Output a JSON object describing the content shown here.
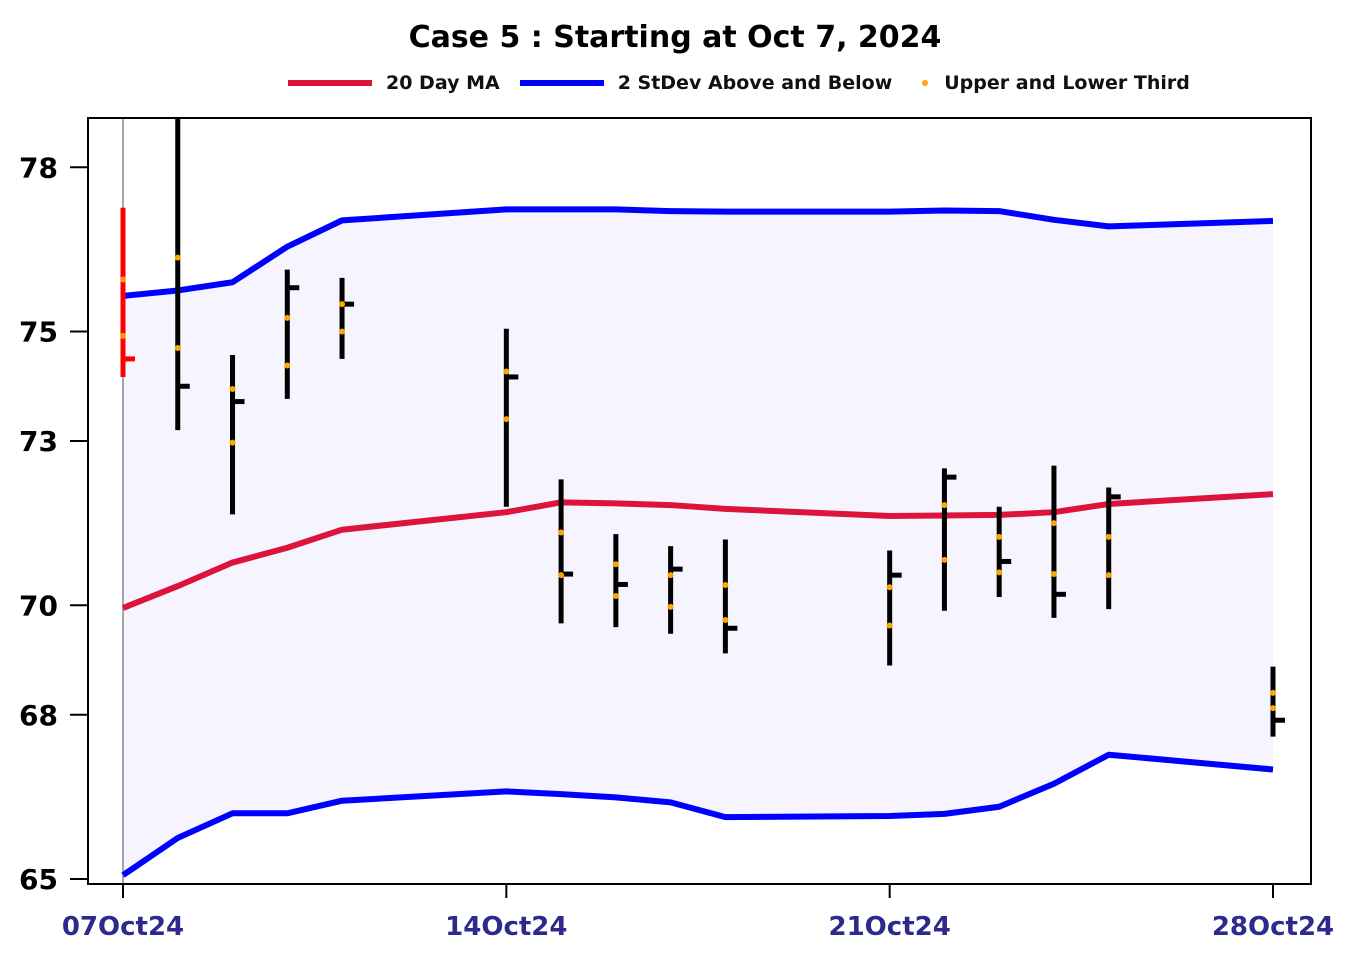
{
  "chart_data": {
    "type": "line",
    "title": "Case 5 :  Starting at  Oct 7, 2024",
    "xlabel": "",
    "ylabel": "",
    "ylim": [
      65,
      78.9
    ],
    "y_ticks": [
      65,
      68,
      70,
      73,
      75,
      78
    ],
    "x_ticks": [
      {
        "label": "07Oct24",
        "day": 0
      },
      {
        "label": "14Oct24",
        "day": 7
      },
      {
        "label": "21Oct24",
        "day": 14
      },
      {
        "label": "28Oct24",
        "day": 21
      }
    ],
    "legend_position": "top",
    "colors": {
      "ma": "#dc143c",
      "band": "#0000ff",
      "thirds": "#ffa500",
      "bars": "#000000",
      "first_bar": "#ff0000",
      "band_fill": "#f6f5ff"
    },
    "series": [
      {
        "name": "20 Day MA",
        "values": [
          {
            "day": 0,
            "value": 69.95
          },
          {
            "day": 1,
            "value": 70.35
          },
          {
            "day": 2,
            "value": 70.78
          },
          {
            "day": 3,
            "value": 71.05
          },
          {
            "day": 4,
            "value": 71.38
          },
          {
            "day": 7,
            "value": 71.7
          },
          {
            "day": 8,
            "value": 71.88
          },
          {
            "day": 9,
            "value": 71.86
          },
          {
            "day": 10,
            "value": 71.83
          },
          {
            "day": 11,
            "value": 71.76
          },
          {
            "day": 14,
            "value": 71.63
          },
          {
            "day": 15,
            "value": 71.64
          },
          {
            "day": 16,
            "value": 71.65
          },
          {
            "day": 17,
            "value": 71.7
          },
          {
            "day": 18,
            "value": 71.85
          },
          {
            "day": 21,
            "value": 72.03
          }
        ]
      },
      {
        "name": "2 StDev Above and Below",
        "upper": [
          {
            "day": 0,
            "value": 75.65
          },
          {
            "day": 1,
            "value": 75.75
          },
          {
            "day": 2,
            "value": 75.9
          },
          {
            "day": 3,
            "value": 76.55
          },
          {
            "day": 4,
            "value": 77.03
          },
          {
            "day": 7,
            "value": 77.23
          },
          {
            "day": 8,
            "value": 77.23
          },
          {
            "day": 9,
            "value": 77.23
          },
          {
            "day": 10,
            "value": 77.2
          },
          {
            "day": 11,
            "value": 77.19
          },
          {
            "day": 14,
            "value": 77.19
          },
          {
            "day": 15,
            "value": 77.21
          },
          {
            "day": 16,
            "value": 77.2
          },
          {
            "day": 17,
            "value": 77.04
          },
          {
            "day": 18,
            "value": 76.92
          },
          {
            "day": 21,
            "value": 77.02
          }
        ],
        "lower": [
          {
            "day": 0,
            "value": 65.07
          },
          {
            "day": 1,
            "value": 65.75
          },
          {
            "day": 2,
            "value": 66.2
          },
          {
            "day": 3,
            "value": 66.2
          },
          {
            "day": 4,
            "value": 66.43
          },
          {
            "day": 7,
            "value": 66.6
          },
          {
            "day": 8,
            "value": 66.55
          },
          {
            "day": 9,
            "value": 66.49
          },
          {
            "day": 10,
            "value": 66.4
          },
          {
            "day": 11,
            "value": 66.13
          },
          {
            "day": 14,
            "value": 66.15
          },
          {
            "day": 15,
            "value": 66.19
          },
          {
            "day": 16,
            "value": 66.32
          },
          {
            "day": 17,
            "value": 66.74
          },
          {
            "day": 18,
            "value": 67.27
          },
          {
            "day": 21,
            "value": 67.0
          }
        ]
      },
      {
        "name": "Upper  and Lower Third",
        "bars": [
          {
            "day": 0,
            "high": 77.26,
            "low": 74.17,
            "close": 74.5,
            "upper_third": 75.95,
            "lower_third": 74.92,
            "highlight": true
          },
          {
            "day": 1,
            "high": 78.9,
            "low": 73.2,
            "close": 74.0,
            "upper_third": 76.35,
            "lower_third": 74.7
          },
          {
            "day": 2,
            "high": 74.57,
            "low": 71.66,
            "close": 73.72,
            "upper_third": 73.95,
            "lower_third": 72.97
          },
          {
            "day": 3,
            "high": 76.13,
            "low": 73.77,
            "close": 75.8,
            "upper_third": 75.25,
            "lower_third": 74.38
          },
          {
            "day": 4,
            "high": 75.98,
            "low": 74.5,
            "close": 75.5,
            "upper_third": 75.5,
            "lower_third": 75.0
          },
          {
            "day": 7,
            "high": 75.05,
            "low": 71.8,
            "close": 74.17,
            "upper_third": 74.27,
            "lower_third": 73.4
          },
          {
            "day": 8,
            "high": 72.3,
            "low": 69.67,
            "close": 70.57,
            "upper_third": 71.33,
            "lower_third": 70.55
          },
          {
            "day": 9,
            "high": 71.3,
            "low": 69.6,
            "close": 70.38,
            "upper_third": 70.75,
            "lower_third": 70.17
          },
          {
            "day": 10,
            "high": 71.08,
            "low": 69.48,
            "close": 70.66,
            "upper_third": 70.55,
            "lower_third": 69.97
          },
          {
            "day": 11,
            "high": 71.2,
            "low": 69.12,
            "close": 69.58,
            "upper_third": 70.37,
            "lower_third": 69.73
          },
          {
            "day": 14,
            "high": 71.0,
            "low": 68.9,
            "close": 70.55,
            "upper_third": 70.33,
            "lower_third": 69.63
          },
          {
            "day": 15,
            "high": 72.5,
            "low": 69.9,
            "close": 72.34,
            "upper_third": 71.83,
            "lower_third": 70.83
          },
          {
            "day": 16,
            "high": 71.8,
            "low": 70.15,
            "close": 70.8,
            "upper_third": 71.25,
            "lower_third": 70.6
          },
          {
            "day": 17,
            "high": 72.55,
            "low": 69.77,
            "close": 70.2,
            "upper_third": 71.5,
            "lower_third": 70.57
          },
          {
            "day": 18,
            "high": 72.15,
            "low": 69.93,
            "close": 71.98,
            "upper_third": 71.25,
            "lower_third": 70.55
          },
          {
            "day": 21,
            "high": 68.88,
            "low": 67.6,
            "close": 67.9,
            "upper_third": 68.4,
            "lower_third": 68.12
          }
        ]
      }
    ]
  }
}
